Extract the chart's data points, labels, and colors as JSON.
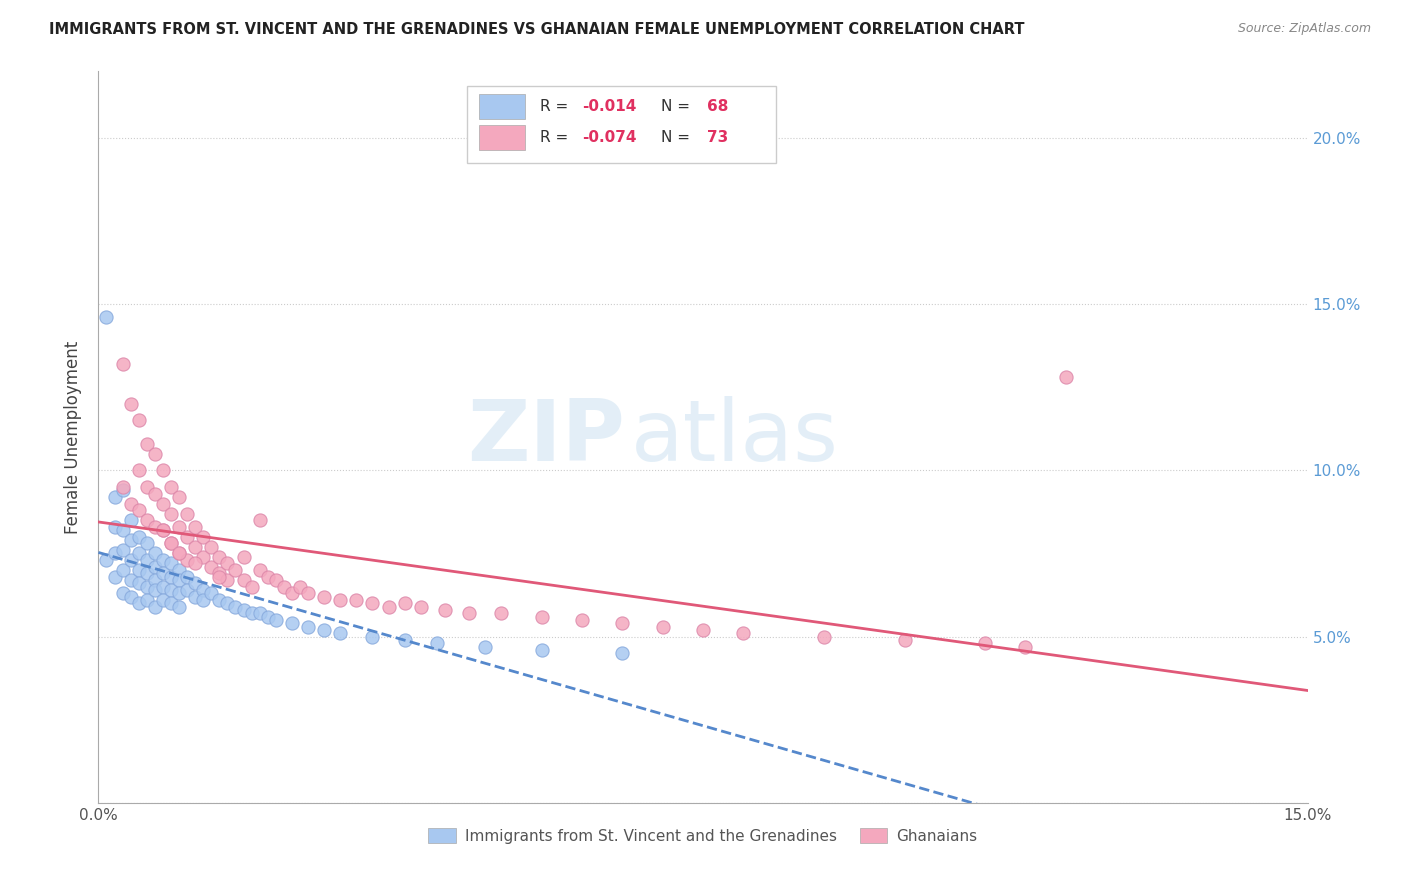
{
  "title": "IMMIGRANTS FROM ST. VINCENT AND THE GRENADINES VS GHANAIAN FEMALE UNEMPLOYMENT CORRELATION CHART",
  "source": "Source: ZipAtlas.com",
  "ylabel": "Female Unemployment",
  "xlim": [
    0.0,
    0.15
  ],
  "ylim": [
    0.0,
    0.22
  ],
  "blue_R": "-0.014",
  "blue_N": "68",
  "pink_R": "-0.074",
  "pink_N": "73",
  "blue_color": "#a8c8f0",
  "pink_color": "#f4a8be",
  "blue_line_color": "#5588cc",
  "pink_line_color": "#e05878",
  "watermark_zip": "ZIP",
  "watermark_atlas": "atlas",
  "legend_blue_label": "Immigrants from St. Vincent and the Grenadines",
  "legend_pink_label": "Ghanaians",
  "blue_scatter_x": [
    0.001,
    0.001,
    0.002,
    0.002,
    0.002,
    0.002,
    0.003,
    0.003,
    0.003,
    0.003,
    0.003,
    0.004,
    0.004,
    0.004,
    0.004,
    0.004,
    0.005,
    0.005,
    0.005,
    0.005,
    0.005,
    0.006,
    0.006,
    0.006,
    0.006,
    0.006,
    0.007,
    0.007,
    0.007,
    0.007,
    0.007,
    0.008,
    0.008,
    0.008,
    0.008,
    0.009,
    0.009,
    0.009,
    0.009,
    0.01,
    0.01,
    0.01,
    0.01,
    0.011,
    0.011,
    0.012,
    0.012,
    0.013,
    0.013,
    0.014,
    0.015,
    0.016,
    0.017,
    0.018,
    0.019,
    0.02,
    0.021,
    0.022,
    0.024,
    0.026,
    0.028,
    0.03,
    0.034,
    0.038,
    0.042,
    0.048,
    0.055,
    0.065
  ],
  "blue_scatter_y": [
    0.146,
    0.073,
    0.092,
    0.083,
    0.075,
    0.068,
    0.094,
    0.082,
    0.076,
    0.07,
    0.063,
    0.085,
    0.079,
    0.073,
    0.067,
    0.062,
    0.08,
    0.075,
    0.07,
    0.066,
    0.06,
    0.078,
    0.073,
    0.069,
    0.065,
    0.061,
    0.075,
    0.071,
    0.067,
    0.064,
    0.059,
    0.073,
    0.069,
    0.065,
    0.061,
    0.072,
    0.068,
    0.064,
    0.06,
    0.07,
    0.067,
    0.063,
    0.059,
    0.068,
    0.064,
    0.066,
    0.062,
    0.064,
    0.061,
    0.063,
    0.061,
    0.06,
    0.059,
    0.058,
    0.057,
    0.057,
    0.056,
    0.055,
    0.054,
    0.053,
    0.052,
    0.051,
    0.05,
    0.049,
    0.048,
    0.047,
    0.046,
    0.045
  ],
  "pink_scatter_x": [
    0.003,
    0.003,
    0.004,
    0.004,
    0.005,
    0.005,
    0.005,
    0.006,
    0.006,
    0.006,
    0.007,
    0.007,
    0.007,
    0.008,
    0.008,
    0.008,
    0.009,
    0.009,
    0.009,
    0.01,
    0.01,
    0.01,
    0.011,
    0.011,
    0.011,
    0.012,
    0.012,
    0.013,
    0.013,
    0.014,
    0.014,
    0.015,
    0.015,
    0.016,
    0.016,
    0.017,
    0.018,
    0.018,
    0.019,
    0.02,
    0.021,
    0.022,
    0.023,
    0.024,
    0.025,
    0.026,
    0.028,
    0.03,
    0.032,
    0.034,
    0.036,
    0.038,
    0.04,
    0.043,
    0.046,
    0.05,
    0.055,
    0.06,
    0.065,
    0.07,
    0.075,
    0.08,
    0.09,
    0.1,
    0.11,
    0.115,
    0.12,
    0.008,
    0.009,
    0.01,
    0.012,
    0.015,
    0.02
  ],
  "pink_scatter_y": [
    0.132,
    0.095,
    0.12,
    0.09,
    0.115,
    0.1,
    0.088,
    0.108,
    0.095,
    0.085,
    0.105,
    0.093,
    0.083,
    0.1,
    0.09,
    0.082,
    0.095,
    0.087,
    0.078,
    0.092,
    0.083,
    0.075,
    0.087,
    0.08,
    0.073,
    0.083,
    0.077,
    0.08,
    0.074,
    0.077,
    0.071,
    0.074,
    0.069,
    0.072,
    0.067,
    0.07,
    0.074,
    0.067,
    0.065,
    0.07,
    0.068,
    0.067,
    0.065,
    0.063,
    0.065,
    0.063,
    0.062,
    0.061,
    0.061,
    0.06,
    0.059,
    0.06,
    0.059,
    0.058,
    0.057,
    0.057,
    0.056,
    0.055,
    0.054,
    0.053,
    0.052,
    0.051,
    0.05,
    0.049,
    0.048,
    0.047,
    0.128,
    0.082,
    0.078,
    0.075,
    0.072,
    0.068,
    0.085
  ]
}
